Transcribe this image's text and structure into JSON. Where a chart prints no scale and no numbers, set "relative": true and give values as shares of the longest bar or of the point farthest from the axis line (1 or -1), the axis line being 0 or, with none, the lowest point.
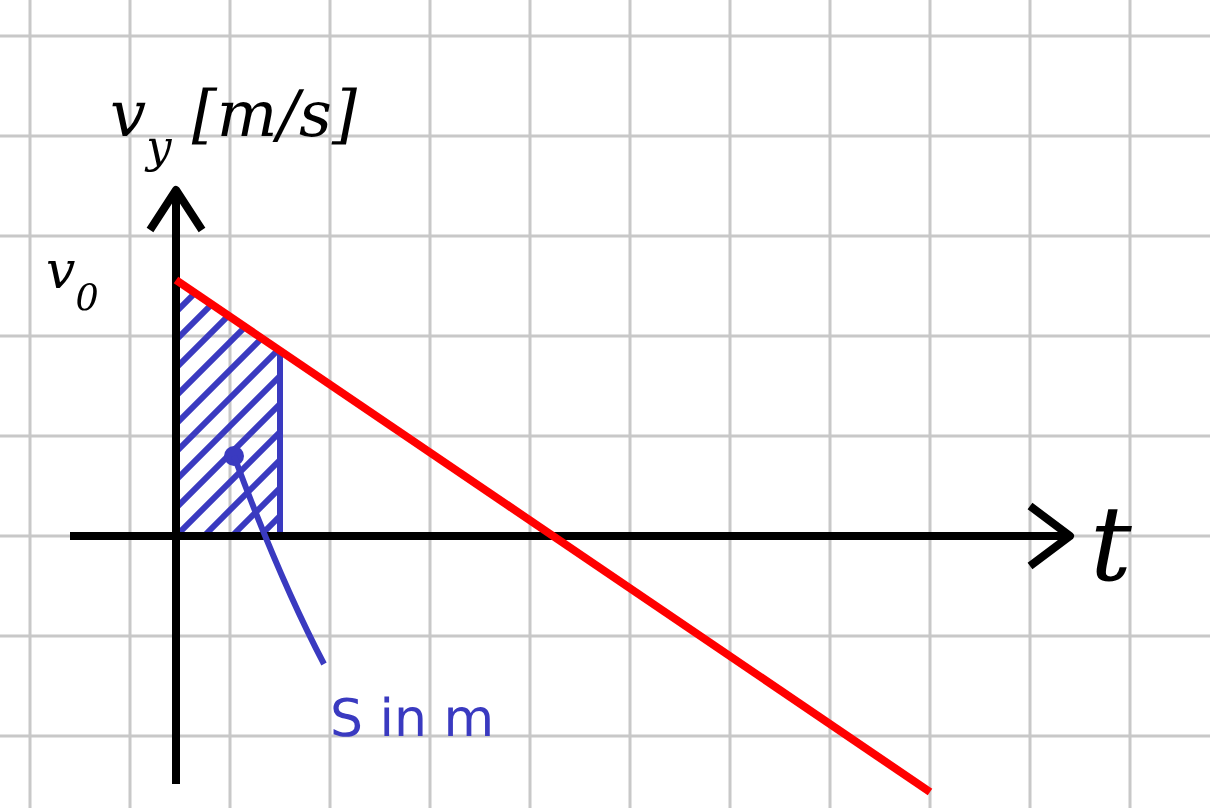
{
  "chart_data": {
    "type": "line",
    "relative": true,
    "xlabel": "t",
    "ylabel": "v$_{y}$ [m/s]",
    "categories": [
      null,
      null
    ],
    "series": [
      {
        "color": "#ff0000",
        "values": [
          1,
          -1
        ]
      }
    ],
    "grid": true,
    "marker": "none",
    "line_style": "solid",
    "annotations": [
      "v$_{0}$",
      "S in m"
    ]
  }
}
